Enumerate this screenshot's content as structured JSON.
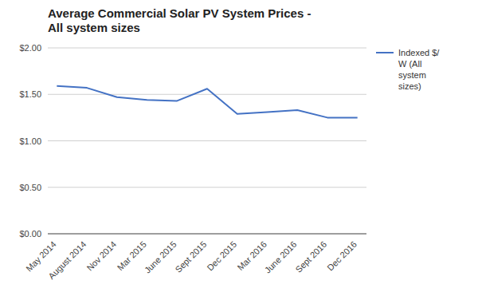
{
  "chart_data": {
    "type": "line",
    "title": "Average Commercial Solar PV System Prices -\nAll system sizes",
    "categories": [
      "May 2014",
      "August 2014",
      "Nov 2014",
      "Mar 2015",
      "June 2015",
      "Sept 2015",
      "Dec 2015",
      "Mar 2016",
      "June 2016",
      "Sept 2016",
      "Dec 2016"
    ],
    "series": [
      {
        "name": "Indexed $/\nW (All\nsystem\nsizes)",
        "color": "#4472C4",
        "values": [
          1.59,
          1.57,
          1.47,
          1.44,
          1.43,
          1.56,
          1.29,
          1.31,
          1.33,
          1.25,
          1.25
        ]
      }
    ],
    "ylim": [
      0.0,
      2.0
    ],
    "yticks": [
      {
        "value": 0.0,
        "label": "$0.00"
      },
      {
        "value": 0.5,
        "label": "$0.50"
      },
      {
        "value": 1.0,
        "label": "$1.00"
      },
      {
        "value": 1.5,
        "label": "$1.50"
      },
      {
        "value": 2.0,
        "label": "$2.00"
      }
    ],
    "grid": true,
    "legend": "right"
  }
}
